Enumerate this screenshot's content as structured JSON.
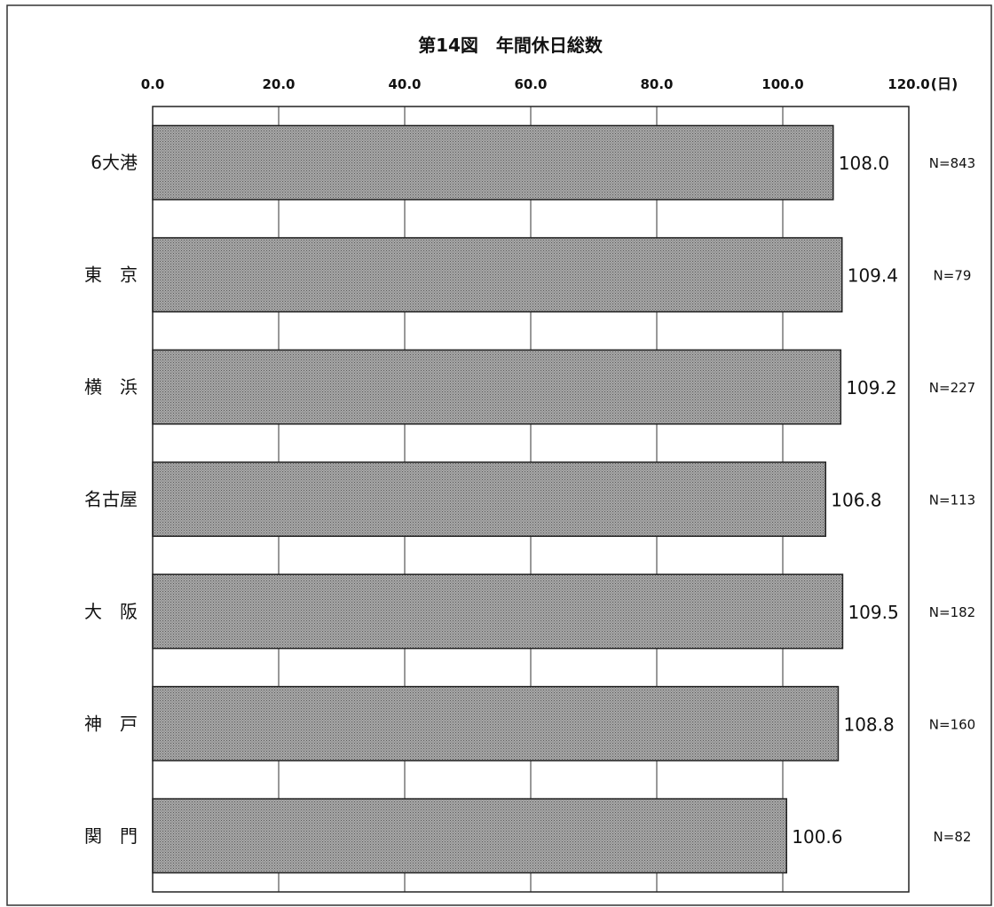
{
  "chart_data": {
    "type": "bar",
    "orientation": "horizontal",
    "title": "第14図　年間休日総数",
    "unit_label": "(日)",
    "xlim": [
      0,
      120
    ],
    "x_ticks": [
      "0.0",
      "20.0",
      "40.0",
      "60.0",
      "80.0",
      "100.0",
      "120.0"
    ],
    "grid": true,
    "bar_color": "#9a9a9a",
    "categories": [
      "6大港",
      "東　京",
      "横　浜",
      "名古屋",
      "大　阪",
      "神　戸",
      "関　門"
    ],
    "values": [
      108.0,
      109.4,
      109.2,
      106.8,
      109.5,
      108.8,
      100.6
    ],
    "value_labels": [
      "108.0",
      "109.4",
      "109.2",
      "106.8",
      "109.5",
      "108.8",
      "100.6"
    ],
    "sample_sizes": [
      "N=843",
      "N=79",
      "N=227",
      "N=113",
      "N=182",
      "N=160",
      "N=82"
    ]
  }
}
